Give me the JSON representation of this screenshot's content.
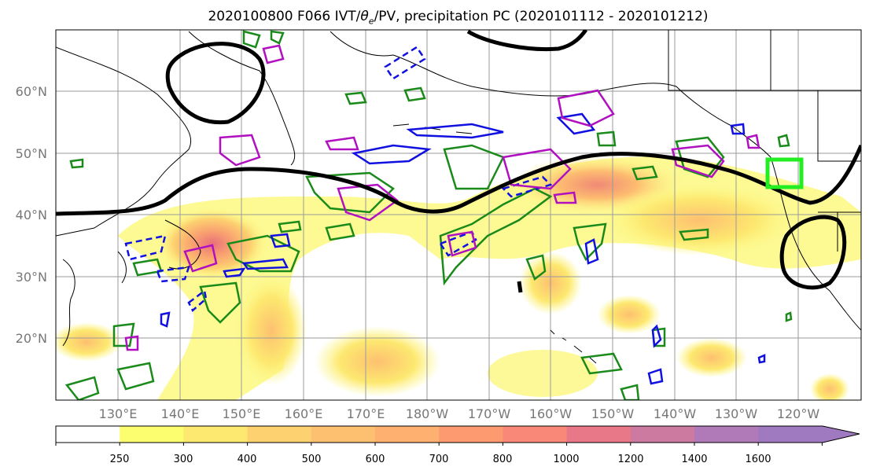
{
  "map": {
    "title": "2020100800 F066 IVT/θe/PV, precipitation PC (2020101112 - 2020101212)",
    "title_parts": {
      "prefix": "2020100800 F066 IVT/",
      "theta": "θ",
      "theta_sub": "e",
      "suffix": "/PV, precipitation PC (2020101112 - 2020101212)"
    },
    "lat_labels": [
      "60°N",
      "50°N",
      "40°N",
      "30°N",
      "20°N"
    ],
    "lon_labels": [
      "130°E",
      "140°E",
      "150°E",
      "160°E",
      "170°E",
      "180°W",
      "170°W",
      "160°W",
      "150°W",
      "140°W",
      "130°W",
      "120°W"
    ],
    "colors": {
      "black_contour": "#000000",
      "green_contour": "#1a8a1a",
      "blue_contour": "#1010e0",
      "magenta_contour": "#b010c0",
      "highlight_box": "#22ee22",
      "grid": "#9a9a9a"
    }
  },
  "colorbar": {
    "ticks": [
      "250",
      "300",
      "400",
      "500",
      "600",
      "700",
      "800",
      "1000",
      "1200",
      "1400",
      "1600"
    ],
    "colors": [
      "#ffffff",
      "#fdfd70",
      "#fde870",
      "#fdd070",
      "#fdc070",
      "#fdb070",
      "#fd9a70",
      "#f98878",
      "#e87888",
      "#cc7aa0",
      "#b07ab8",
      "#a07ac0"
    ]
  }
}
